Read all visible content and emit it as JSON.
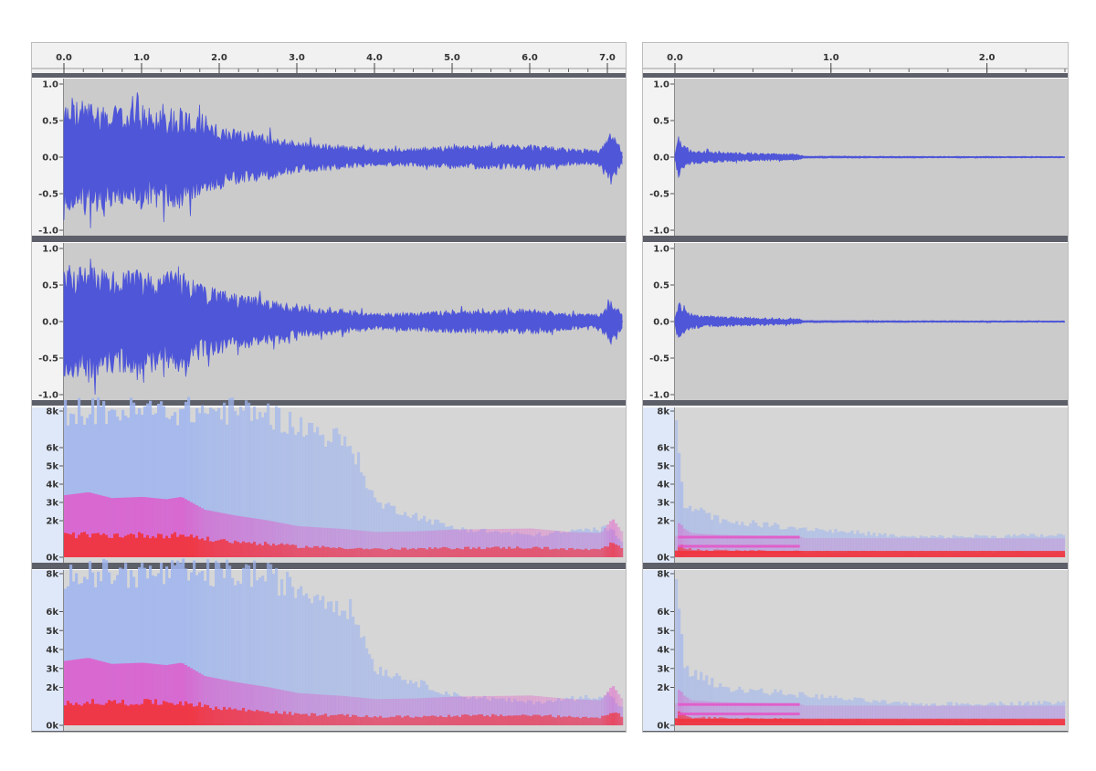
{
  "colors": {
    "waveform": "#4f56d8",
    "track_bg": "#cbcbcb",
    "separator": "#5d5f69",
    "ruler_bg": "#f1f1f1",
    "vruler_bg": "#f3f3f3",
    "spec_ruler_bg": "#dfe8f8",
    "spec_bg": "#d6d6d6",
    "spec_low": "#9fb5ee",
    "spec_mid": "#e552c8",
    "spec_high": "#f0363f"
  },
  "panels": [
    {
      "name": "left-view",
      "timeline": {
        "range": [
          0,
          7.2
        ],
        "labels": [
          "0.0",
          "1.0",
          "2.0",
          "3.0",
          "4.0",
          "5.0",
          "6.0",
          "7.0"
        ],
        "values": [
          0,
          1,
          2,
          3,
          4,
          5,
          6,
          7
        ]
      },
      "waveform_labels": [
        "1.0",
        "0.5",
        "0.0",
        "-0.5",
        "-1.0"
      ],
      "spectrogram_labels": [
        "8k",
        "6k",
        "5k",
        "4k",
        "3k",
        "2k",
        "0k"
      ],
      "envelope": {
        "t": [
          0,
          0.3,
          0.6,
          1.0,
          1.3,
          1.5,
          1.8,
          2.2,
          2.6,
          3.0,
          3.6,
          4.0,
          4.5,
          5.0,
          5.5,
          6.0,
          6.5,
          6.9,
          7.05,
          7.2
        ],
        "amp": [
          0.75,
          0.8,
          0.7,
          0.72,
          0.68,
          0.72,
          0.5,
          0.4,
          0.32,
          0.22,
          0.17,
          0.12,
          0.13,
          0.16,
          0.17,
          0.18,
          0.12,
          0.1,
          0.35,
          0.07
        ]
      },
      "spectrum_cutoff_khz": {
        "t": [
          0,
          0.5,
          1,
          1.5,
          2,
          2.5,
          3,
          3.5,
          3.7,
          4,
          5,
          6,
          7,
          7.2
        ],
        "khz": [
          8,
          8,
          8,
          8,
          8,
          8,
          7.2,
          6.5,
          6,
          3,
          1.6,
          1.2,
          1.6,
          0.8
        ]
      }
    },
    {
      "name": "right-view",
      "timeline": {
        "range": [
          0,
          2.5
        ],
        "labels": [
          "0.0",
          "1.0",
          "2.0"
        ],
        "values": [
          0,
          1,
          2
        ]
      },
      "waveform_labels": [
        "1.0",
        "0.5",
        "0.0",
        "-0.5",
        "-1.0"
      ],
      "spectrogram_labels": [
        "8k",
        "6k",
        "5k",
        "4k",
        "3k",
        "2k",
        "0k"
      ],
      "envelope": {
        "t": [
          0,
          0.02,
          0.05,
          0.1,
          0.3,
          0.6,
          0.8,
          0.82,
          1.5,
          2.5
        ],
        "amp": [
          0.05,
          0.3,
          0.18,
          0.1,
          0.07,
          0.05,
          0.04,
          0.015,
          0.012,
          0.01
        ]
      },
      "spectrum_cutoff_khz": {
        "t": [
          0,
          0.05,
          0.3,
          0.8,
          1.5,
          2.5
        ],
        "khz": [
          8,
          3,
          2,
          1.6,
          1.1,
          1.2
        ]
      }
    }
  ]
}
